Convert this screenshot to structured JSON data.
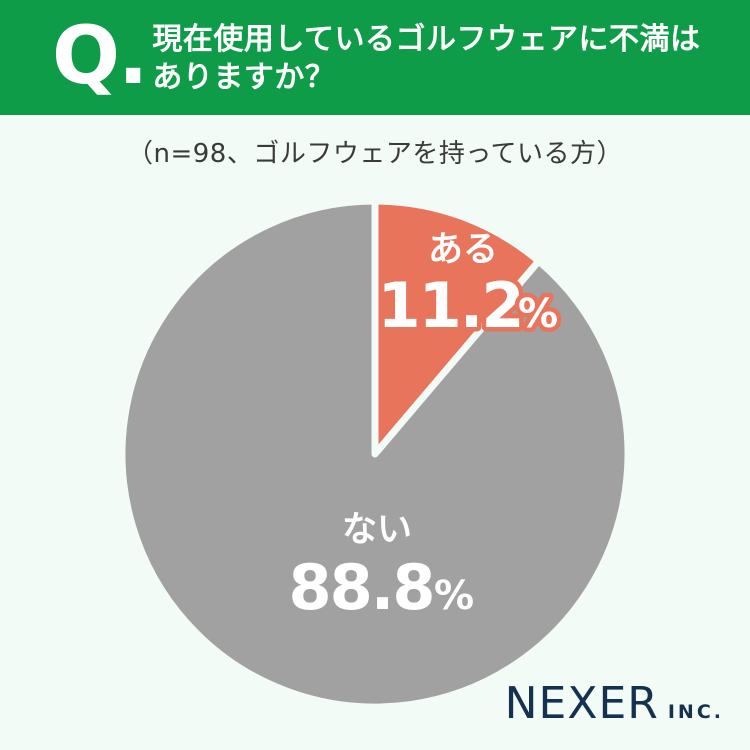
{
  "header": {
    "q_mark": "Q.",
    "question_line1": "現在使用しているゴルフウェアに不満は",
    "question_line2": "ありますか？"
  },
  "subtitle": "（n=98、ゴルフウェアを持っている方）",
  "chart_data": {
    "type": "pie",
    "title": "現在使用しているゴルフウェアに不満はありますか？",
    "sample_note": "（n=98、ゴルフウェアを持っている方）",
    "start_angle_deg": 0,
    "direction": "clockwise",
    "slices": [
      {
        "label": "ある",
        "value": 11.2,
        "unit": "%",
        "color": "#E7745B"
      },
      {
        "label": "ない",
        "value": 88.8,
        "unit": "%",
        "color": "#A1A1A1"
      }
    ],
    "divider_color": "#F2FBF5",
    "legend": "none"
  },
  "footer": {
    "brand": "NEXER",
    "brand_suffix": "INC."
  },
  "colors": {
    "header_green": "#0F9C48",
    "background": "#F2FBF5",
    "slice_yes_orange": "#E7745B",
    "slice_no_gray": "#A1A1A1",
    "logo_navy": "#143150",
    "subtitle_text": "#3A3A3A",
    "header_text": "#FFFFFF"
  }
}
